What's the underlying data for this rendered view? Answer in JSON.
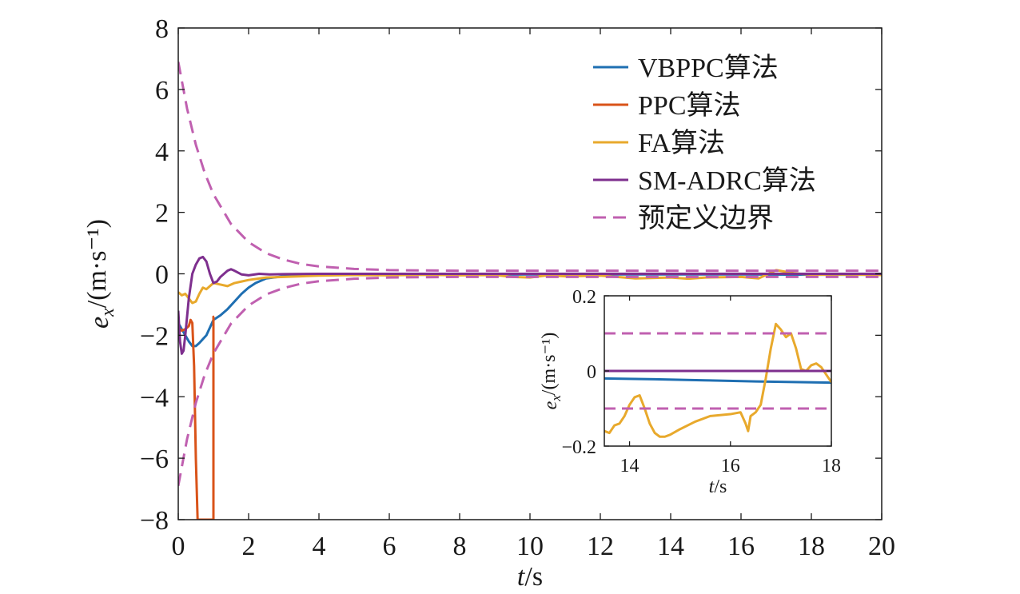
{
  "chart_data": [
    {
      "type": "line",
      "role": "main",
      "xlabel": "t/s",
      "ylabel": "e_x/(m·s⁻¹)",
      "xlim": [
        0,
        20
      ],
      "ylim": [
        -8,
        8
      ],
      "xticks": [
        0,
        2,
        4,
        6,
        8,
        10,
        12,
        14,
        16,
        18,
        20
      ],
      "yticks": [
        -8,
        -6,
        -4,
        -2,
        0,
        2,
        4,
        6,
        8
      ],
      "xtick_labels": [
        "0",
        "2",
        "4",
        "6",
        "8",
        "10",
        "12",
        "14",
        "16",
        "18",
        "20"
      ],
      "ytick_labels": [
        "−8",
        "−6",
        "−4",
        "−2",
        "0",
        "2",
        "4",
        "6",
        "8"
      ],
      "legend_position": "top-right",
      "grid": false,
      "series": [
        {
          "name": "VBPPC算法",
          "color": "#1f6fb2",
          "style": "solid",
          "x": [
            0,
            0.1,
            0.2,
            0.3,
            0.4,
            0.5,
            0.6,
            0.8,
            1.0,
            1.2,
            1.4,
            1.6,
            1.8,
            2.0,
            2.2,
            2.5,
            3.0,
            3.5,
            4.0,
            5.0,
            6.0,
            8.0,
            10.0,
            12.0,
            14.0,
            16.0,
            18.0,
            20.0
          ],
          "y": [
            -1.6,
            -1.8,
            -2.0,
            -2.2,
            -2.35,
            -2.35,
            -2.25,
            -2.0,
            -1.5,
            -1.35,
            -1.15,
            -0.9,
            -0.65,
            -0.45,
            -0.3,
            -0.15,
            -0.08,
            -0.05,
            -0.04,
            -0.03,
            -0.03,
            -0.03,
            -0.02,
            -0.02,
            -0.02,
            -0.02,
            -0.03,
            -0.03
          ]
        },
        {
          "name": "PPC算法",
          "color": "#d95319",
          "style": "solid",
          "x": [
            0,
            0.05,
            0.1,
            0.2,
            0.3,
            0.35,
            0.4,
            0.45,
            0.5,
            0.55,
            0.6,
            0.7,
            0.8,
            0.9,
            0.95,
            0.98,
            1.0,
            1.0,
            1.02
          ],
          "y": [
            -1.9,
            -1.8,
            -1.85,
            -1.8,
            -1.7,
            -1.5,
            -1.6,
            -3.0,
            -6.0,
            -8.0,
            -8.0,
            -8.0,
            -8.0,
            -8.0,
            -8.0,
            -8.0,
            -8.0,
            -1.4,
            -1.4
          ]
        },
        {
          "name": "FA算法",
          "color": "#e8a92c",
          "style": "solid",
          "x": [
            0,
            0.1,
            0.2,
            0.3,
            0.4,
            0.5,
            0.6,
            0.7,
            0.8,
            1.0,
            1.2,
            1.4,
            1.6,
            1.8,
            2.0,
            2.5,
            3.0,
            4.0,
            5.0,
            6.0,
            7.0,
            8.0,
            9.0,
            9.5,
            10.0,
            10.5,
            11.0,
            12.0,
            13.0,
            14.0,
            14.5,
            15.0,
            16.0,
            16.5,
            17.0,
            17.5,
            18.0,
            19.0,
            20.0
          ],
          "y": [
            -0.6,
            -0.7,
            -0.65,
            -0.8,
            -0.95,
            -0.9,
            -0.65,
            -0.45,
            -0.5,
            -0.3,
            -0.35,
            -0.4,
            -0.3,
            -0.25,
            -0.2,
            -0.12,
            -0.1,
            -0.06,
            -0.04,
            -0.05,
            -0.03,
            -0.05,
            -0.04,
            -0.1,
            -0.12,
            -0.05,
            -0.08,
            -0.06,
            -0.15,
            -0.12,
            -0.16,
            -0.12,
            -0.1,
            -0.15,
            0.12,
            0.02,
            -0.03,
            -0.02,
            -0.04
          ]
        },
        {
          "name": "SM-ADRC算法",
          "color": "#7e2f8e",
          "style": "solid",
          "x": [
            0,
            0.05,
            0.1,
            0.15,
            0.2,
            0.3,
            0.4,
            0.5,
            0.6,
            0.7,
            0.8,
            0.9,
            1.0,
            1.1,
            1.2,
            1.3,
            1.4,
            1.5,
            1.6,
            1.8,
            2.0,
            2.3,
            2.6,
            3.0,
            4.0,
            5.0,
            10.0,
            15.0,
            20.0
          ],
          "y": [
            -1.2,
            -2.2,
            -2.6,
            -2.5,
            -2.0,
            -0.8,
            0.0,
            0.3,
            0.5,
            0.55,
            0.4,
            0.0,
            -0.3,
            -0.25,
            -0.1,
            0.0,
            0.1,
            0.15,
            0.1,
            -0.02,
            -0.05,
            0.0,
            -0.02,
            -0.01,
            0.0,
            0.0,
            0.0,
            0.0,
            0.0
          ]
        },
        {
          "name": "预定义边界",
          "color": "#c060b0",
          "style": "dashed",
          "x": [
            0,
            0.25,
            0.5,
            0.75,
            1.0,
            1.5,
            2.0,
            2.5,
            3.0,
            3.5,
            4.0,
            5.0,
            6.0,
            7.0,
            8.0,
            10.0,
            12.0,
            14.0,
            16.0,
            18.0,
            20.0
          ],
          "y": [
            6.9,
            5.38,
            4.2,
            3.29,
            2.59,
            1.62,
            1.03,
            0.67,
            0.46,
            0.32,
            0.24,
            0.16,
            0.12,
            0.11,
            0.1,
            0.1,
            0.1,
            0.1,
            0.1,
            0.1,
            0.1
          ],
          "mirrored": true
        }
      ]
    },
    {
      "type": "line",
      "role": "inset",
      "xlabel": "t/s",
      "ylabel": "e_x/(m·s⁻¹)",
      "xlim": [
        13.5,
        18
      ],
      "ylim": [
        -0.2,
        0.2
      ],
      "xticks": [
        14,
        16,
        18
      ],
      "yticks": [
        -0.2,
        0,
        0.2
      ],
      "xtick_labels": [
        "14",
        "16",
        "18"
      ],
      "ytick_labels": [
        "−0.2",
        "0",
        "0.2"
      ],
      "grid": false,
      "series": [
        {
          "name": "VBPPC算法",
          "color": "#1f6fb2",
          "style": "solid",
          "x": [
            13.5,
            14.5,
            15.5,
            16.5,
            17.5,
            18.0
          ],
          "y": [
            -0.02,
            -0.022,
            -0.025,
            -0.028,
            -0.03,
            -0.031
          ]
        },
        {
          "name": "FA算法",
          "color": "#e8a92c",
          "style": "solid",
          "x": [
            13.5,
            13.6,
            13.7,
            13.8,
            13.9,
            14.0,
            14.1,
            14.2,
            14.3,
            14.4,
            14.5,
            14.6,
            14.7,
            14.8,
            15.0,
            15.3,
            15.6,
            16.0,
            16.2,
            16.3,
            16.35,
            16.4,
            16.5,
            16.6,
            16.7,
            16.8,
            16.9,
            17.0,
            17.1,
            17.2,
            17.3,
            17.4,
            17.5,
            17.6,
            17.7,
            17.8,
            17.9,
            18.0
          ],
          "y": [
            -0.16,
            -0.165,
            -0.145,
            -0.14,
            -0.12,
            -0.09,
            -0.07,
            -0.065,
            -0.1,
            -0.14,
            -0.165,
            -0.175,
            -0.175,
            -0.17,
            -0.155,
            -0.135,
            -0.12,
            -0.115,
            -0.11,
            -0.14,
            -0.16,
            -0.12,
            -0.11,
            -0.09,
            -0.02,
            0.06,
            0.125,
            0.11,
            0.09,
            0.1,
            0.06,
            0.005,
            0.0,
            0.015,
            0.02,
            0.01,
            -0.01,
            -0.03
          ]
        },
        {
          "name": "SM-ADRC算法",
          "color": "#7e2f8e",
          "style": "solid",
          "x": [
            13.5,
            18.0
          ],
          "y": [
            0.0,
            0.0
          ]
        },
        {
          "name": "预定义边界",
          "color": "#c060b0",
          "style": "dashed",
          "x": [
            13.5,
            18.0
          ],
          "y": [
            0.1,
            0.1
          ],
          "mirrored": true
        }
      ]
    }
  ]
}
